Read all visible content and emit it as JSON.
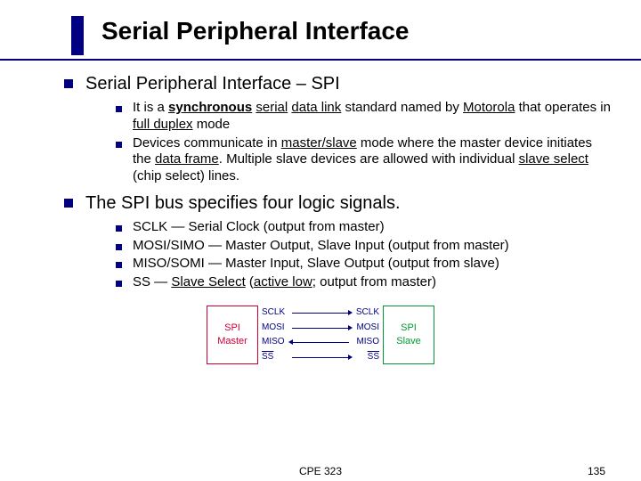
{
  "title": "Serial Peripheral Interface",
  "sections": [
    {
      "heading": "Serial Peripheral Interface – SPI",
      "items": [
        {
          "segments": [
            {
              "t": "It is a "
            },
            {
              "t": "synchronous",
              "cls": "bu"
            },
            {
              "t": " "
            },
            {
              "t": "serial",
              "u": 1
            },
            {
              "t": " "
            },
            {
              "t": "data link",
              "u": 1
            },
            {
              "t": " standard named by "
            },
            {
              "t": "Motorola",
              "u": 1
            },
            {
              "t": " that operates in "
            },
            {
              "t": "full duplex",
              "u": 1
            },
            {
              "t": " mode"
            }
          ]
        },
        {
          "segments": [
            {
              "t": "Devices communicate in "
            },
            {
              "t": "master/slave",
              "u": 1
            },
            {
              "t": " mode where the master device initiates the "
            },
            {
              "t": "data frame",
              "u": 1
            },
            {
              "t": ". Multiple slave devices are allowed with individual "
            },
            {
              "t": "slave select",
              "u": 1
            },
            {
              "t": " (chip select) lines."
            }
          ]
        }
      ]
    },
    {
      "heading": "The SPI bus specifies four logic signals.",
      "items": [
        {
          "segments": [
            {
              "t": "SCLK — Serial Clock (output from master)"
            }
          ]
        },
        {
          "segments": [
            {
              "t": "MOSI/SIMO — Master Output, Slave Input (output from master)"
            }
          ]
        },
        {
          "segments": [
            {
              "t": "MISO/SOMI — Master Input, Slave Output (output from slave)"
            }
          ]
        },
        {
          "segments": [
            {
              "t": "SS — "
            },
            {
              "t": "Slave Select",
              "u": 1
            },
            {
              "t": " ("
            },
            {
              "t": "active low",
              "u": 1
            },
            {
              "t": "; output from master)"
            }
          ]
        }
      ]
    }
  ],
  "diagram": {
    "master_label": "SPI\nMaster",
    "slave_label": "SPI\nSlave",
    "master_color": "#cc0033",
    "slave_color": "#009933",
    "wire_color": "#000080",
    "signals": [
      {
        "left": "SCLK",
        "right": "SCLK",
        "dir": "r"
      },
      {
        "left": "MOSI",
        "right": "MOSI",
        "dir": "r"
      },
      {
        "left": "MISO",
        "right": "MISO",
        "dir": "l"
      },
      {
        "left": "SS",
        "right": "SS",
        "dir": "r",
        "overline": true
      }
    ]
  },
  "footer": {
    "center": "CPE 323",
    "page": "135"
  }
}
